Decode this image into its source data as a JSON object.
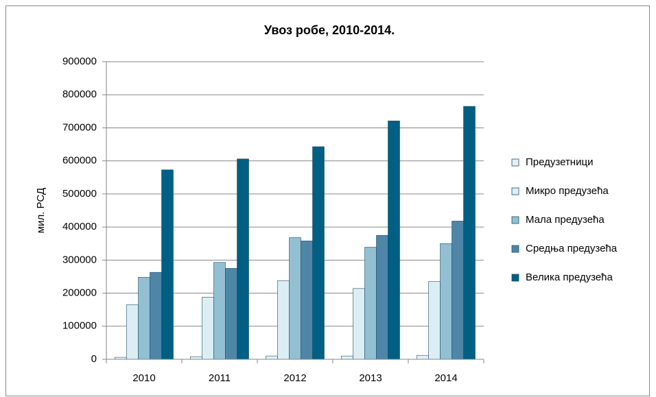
{
  "chart_data": {
    "type": "bar",
    "title": "Увоз робе, 2010-2014.",
    "y_label": "мил. РСД",
    "categories": [
      "2010",
      "2011",
      "2012",
      "2013",
      "2014"
    ],
    "series": [
      {
        "name": "Предузетници",
        "color": "#e3f1f6",
        "values": [
          6000,
          8000,
          10000,
          10000,
          12000
        ]
      },
      {
        "name": "Микро предузећа",
        "color": "#dbeef4",
        "values": [
          165000,
          188000,
          238000,
          214000,
          235000
        ]
      },
      {
        "name": "Мала предузећа",
        "color": "#93bfd2",
        "values": [
          248000,
          293000,
          368000,
          339000,
          350000
        ]
      },
      {
        "name": "Средња предузећа",
        "color": "#4f86a8",
        "values": [
          263000,
          275000,
          358000,
          375000,
          418000
        ]
      },
      {
        "name": "Велика предузећа",
        "color": "#005f83",
        "values": [
          573000,
          606000,
          643000,
          721000,
          765000
        ]
      }
    ],
    "ylim": [
      0,
      900000
    ],
    "yticks": [
      0,
      100000,
      200000,
      300000,
      400000,
      500000,
      600000,
      700000,
      800000,
      900000
    ],
    "grid": true,
    "legend": "right"
  }
}
